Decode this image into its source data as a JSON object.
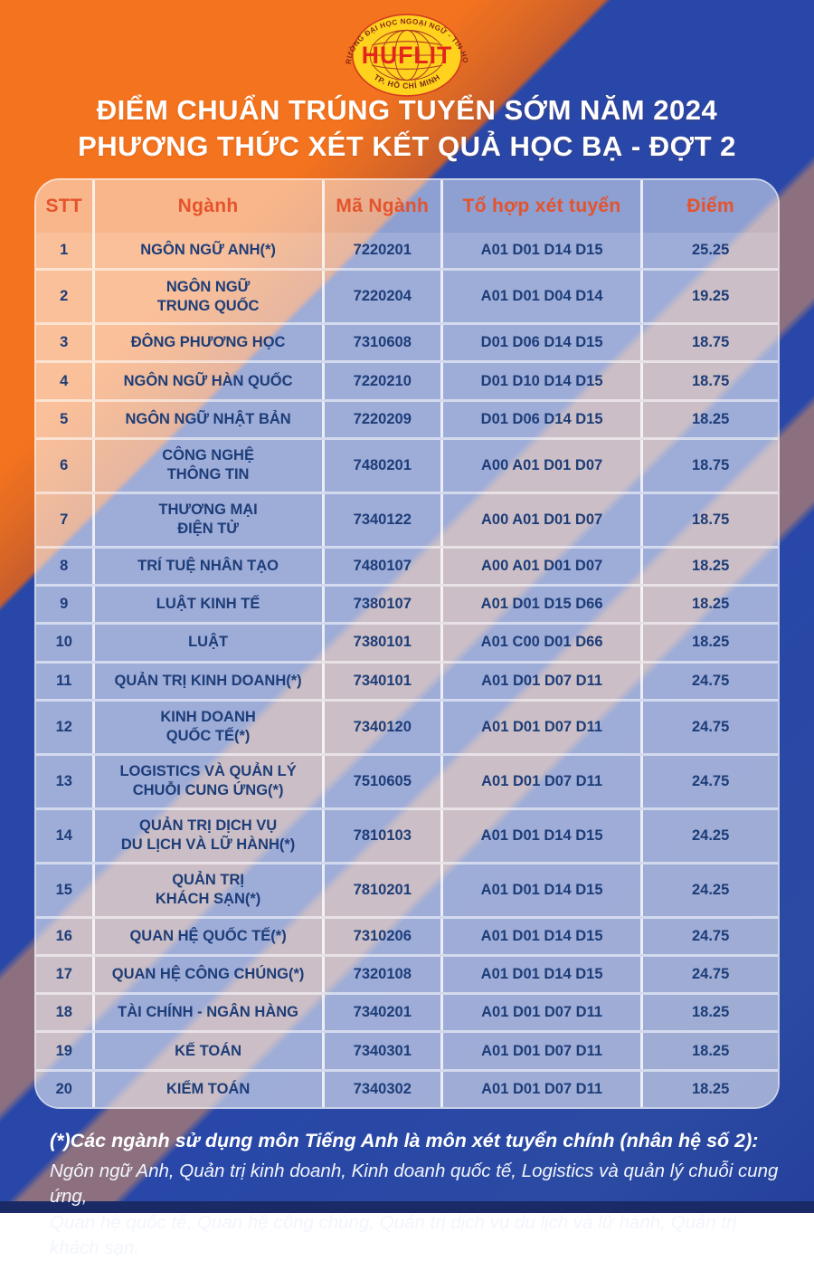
{
  "logo": {
    "arc_top": "TRƯỜNG ĐẠI HỌC NGOẠI NGỮ - TIN HỌC",
    "name": "HUFLIT",
    "arc_bottom": "TP. HỒ CHÍ MINH"
  },
  "title": {
    "line1": "ĐIỂM CHUẨN TRÚNG TUYỂN SỚM NĂM 2024",
    "line2": "PHƯƠNG THỨC XÉT KẾT QUẢ HỌC BẠ - ĐỢT 2"
  },
  "table": {
    "columns": [
      "STT",
      "Ngành",
      "Mã Ngành",
      "Tổ hợp xét tuyển",
      "Điểm"
    ],
    "rows": [
      {
        "stt": "1",
        "nganh": "NGÔN NGỮ ANH(*)",
        "ma": "7220201",
        "tohop": "A01 D01 D14 D15",
        "diem": "25.25"
      },
      {
        "stt": "2",
        "nganh": "NGÔN NGỮ\nTRUNG QUỐC",
        "ma": "7220204",
        "tohop": "A01 D01 D04 D14",
        "diem": "19.25"
      },
      {
        "stt": "3",
        "nganh": "ĐÔNG PHƯƠNG HỌC",
        "ma": "7310608",
        "tohop": "D01 D06 D14 D15",
        "diem": "18.75"
      },
      {
        "stt": "4",
        "nganh": "NGÔN NGỮ HÀN QUỐC",
        "ma": "7220210",
        "tohop": "D01 D10 D14 D15",
        "diem": "18.75"
      },
      {
        "stt": "5",
        "nganh": "NGÔN NGỮ NHẬT BẢN",
        "ma": "7220209",
        "tohop": "D01 D06 D14 D15",
        "diem": "18.25"
      },
      {
        "stt": "6",
        "nganh": "CÔNG NGHỆ\nTHÔNG TIN",
        "ma": "7480201",
        "tohop": "A00 A01 D01 D07",
        "diem": "18.75"
      },
      {
        "stt": "7",
        "nganh": "THƯƠNG MẠI\nĐIỆN TỬ",
        "ma": "7340122",
        "tohop": "A00 A01 D01 D07",
        "diem": "18.75"
      },
      {
        "stt": "8",
        "nganh": "TRÍ TUỆ NHÂN TẠO",
        "ma": "7480107",
        "tohop": "A00 A01 D01 D07",
        "diem": "18.25"
      },
      {
        "stt": "9",
        "nganh": "LUẬT KINH TẾ",
        "ma": "7380107",
        "tohop": "A01 D01 D15 D66",
        "diem": "18.25"
      },
      {
        "stt": "10",
        "nganh": "LUẬT",
        "ma": "7380101",
        "tohop": "A01 C00 D01 D66",
        "diem": "18.25"
      },
      {
        "stt": "11",
        "nganh": "QUẢN TRỊ KINH DOANH(*)",
        "ma": "7340101",
        "tohop": "A01 D01 D07 D11",
        "diem": "24.75"
      },
      {
        "stt": "12",
        "nganh": "KINH DOANH\nQUỐC TẾ(*)",
        "ma": "7340120",
        "tohop": "A01 D01 D07 D11",
        "diem": "24.75"
      },
      {
        "stt": "13",
        "nganh": "LOGISTICS VÀ QUẢN LÝ\nCHUỖI CUNG ỨNG(*)",
        "ma": "7510605",
        "tohop": "A01 D01 D07 D11",
        "diem": "24.75"
      },
      {
        "stt": "14",
        "nganh": "QUẢN TRỊ DỊCH VỤ\nDU LỊCH VÀ LỮ HÀNH(*)",
        "ma": "7810103",
        "tohop": "A01 D01 D14 D15",
        "diem": "24.25"
      },
      {
        "stt": "15",
        "nganh": "QUẢN TRỊ\nKHÁCH SẠN(*)",
        "ma": "7810201",
        "tohop": "A01 D01 D14 D15",
        "diem": "24.25"
      },
      {
        "stt": "16",
        "nganh": "QUAN HỆ QUỐC TẾ(*)",
        "ma": "7310206",
        "tohop": "A01 D01 D14 D15",
        "diem": "24.75"
      },
      {
        "stt": "17",
        "nganh": "QUAN HỆ CÔNG CHÚNG(*)",
        "ma": "7320108",
        "tohop": "A01 D01 D14 D15",
        "diem": "24.75"
      },
      {
        "stt": "18",
        "nganh": "TÀI CHÍNH - NGÂN HÀNG",
        "ma": "7340201",
        "tohop": "A01 D01 D07 D11",
        "diem": "18.25"
      },
      {
        "stt": "19",
        "nganh": "KẾ TOÁN",
        "ma": "7340301",
        "tohop": "A01 D01 D07 D11",
        "diem": "18.25"
      },
      {
        "stt": "20",
        "nganh": "KIỂM TOÁN",
        "ma": "7340302",
        "tohop": "A01 D01 D07 D11",
        "diem": "18.25"
      }
    ]
  },
  "footnote": {
    "heading": "(*)Các ngành sử dụng môn Tiếng Anh là môn xét tuyển chính (nhân hệ số 2):",
    "line1": "Ngôn ngữ Anh, Quản trị kinh doanh, Kinh doanh quốc tế, Logistics và quản lý chuỗi cung ứng,",
    "line2": "Quan hệ quốc tế, Quan hệ công chúng, Quản trị dịch vụ du lịch và lữ hành, Quản trị khách sạn."
  },
  "colors": {
    "background_orange": "#F4731F",
    "background_blue": "#2847A8",
    "background_mauve": "#8C7080",
    "bottom_bar": "#1A2A66",
    "header_text": "#E5532C",
    "body_text": "#1D3D78",
    "title_text": "#FFFFFF",
    "logo_yellow": "#FFD21E",
    "logo_red": "#E3251C"
  }
}
